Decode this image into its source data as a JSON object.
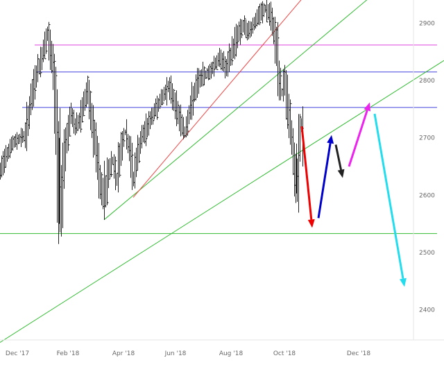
{
  "chart_data": {
    "type": "ohlc",
    "title": "",
    "xlabel": "",
    "ylabel": "",
    "ylim": [
      2330,
      2945
    ],
    "x_ticks": [
      "Dec '17",
      "Feb '18",
      "Apr '18",
      "Jun '18",
      "Aug '18",
      "Oct '18",
      "Dec '18"
    ],
    "y_ticks": [
      2400,
      2500,
      2600,
      2700,
      2800,
      2900
    ],
    "grid": false,
    "legend": "none",
    "price_path": [
      {
        "t": 0,
        "v": 2640
      },
      {
        "t": 8,
        "v": 2670
      },
      {
        "t": 18,
        "v": 2690
      },
      {
        "t": 28,
        "v": 2700
      },
      {
        "t": 36,
        "v": 2705
      },
      {
        "t": 44,
        "v": 2760
      },
      {
        "t": 52,
        "v": 2810
      },
      {
        "t": 60,
        "v": 2840
      },
      {
        "t": 64,
        "v": 2862
      },
      {
        "t": 68,
        "v": 2880
      },
      {
        "t": 72,
        "v": 2850
      },
      {
        "t": 76,
        "v": 2820
      },
      {
        "t": 80,
        "v": 2740
      },
      {
        "t": 84,
        "v": 2620
      },
      {
        "t": 87,
        "v": 2560
      },
      {
        "t": 91,
        "v": 2660
      },
      {
        "t": 96,
        "v": 2700
      },
      {
        "t": 102,
        "v": 2740
      },
      {
        "t": 108,
        "v": 2720
      },
      {
        "t": 114,
        "v": 2730
      },
      {
        "t": 120,
        "v": 2760
      },
      {
        "t": 126,
        "v": 2780
      },
      {
        "t": 132,
        "v": 2730
      },
      {
        "t": 138,
        "v": 2680
      },
      {
        "t": 144,
        "v": 2620
      },
      {
        "t": 150,
        "v": 2590
      },
      {
        "t": 156,
        "v": 2640
      },
      {
        "t": 162,
        "v": 2660
      },
      {
        "t": 168,
        "v": 2630
      },
      {
        "t": 174,
        "v": 2680
      },
      {
        "t": 180,
        "v": 2710
      },
      {
        "t": 186,
        "v": 2680
      },
      {
        "t": 192,
        "v": 2630
      },
      {
        "t": 198,
        "v": 2670
      },
      {
        "t": 204,
        "v": 2700
      },
      {
        "t": 212,
        "v": 2720
      },
      {
        "t": 220,
        "v": 2740
      },
      {
        "t": 228,
        "v": 2760
      },
      {
        "t": 236,
        "v": 2775
      },
      {
        "t": 242,
        "v": 2790
      },
      {
        "t": 248,
        "v": 2775
      },
      {
        "t": 254,
        "v": 2750
      },
      {
        "t": 260,
        "v": 2730
      },
      {
        "t": 266,
        "v": 2710
      },
      {
        "t": 272,
        "v": 2740
      },
      {
        "t": 278,
        "v": 2770
      },
      {
        "t": 286,
        "v": 2800
      },
      {
        "t": 294,
        "v": 2810
      },
      {
        "t": 302,
        "v": 2815
      },
      {
        "t": 310,
        "v": 2830
      },
      {
        "t": 318,
        "v": 2840
      },
      {
        "t": 326,
        "v": 2820
      },
      {
        "t": 334,
        "v": 2850
      },
      {
        "t": 342,
        "v": 2880
      },
      {
        "t": 350,
        "v": 2895
      },
      {
        "t": 358,
        "v": 2885
      },
      {
        "t": 366,
        "v": 2900
      },
      {
        "t": 374,
        "v": 2915
      },
      {
        "t": 382,
        "v": 2925
      },
      {
        "t": 388,
        "v": 2915
      },
      {
        "t": 394,
        "v": 2890
      },
      {
        "t": 398,
        "v": 2860
      },
      {
        "t": 402,
        "v": 2800
      },
      {
        "t": 406,
        "v": 2780
      },
      {
        "t": 410,
        "v": 2800
      },
      {
        "t": 414,
        "v": 2760
      },
      {
        "t": 418,
        "v": 2720
      },
      {
        "t": 422,
        "v": 2680
      },
      {
        "t": 425,
        "v": 2640
      },
      {
        "t": 428,
        "v": 2620
      },
      {
        "t": 431,
        "v": 2690
      },
      {
        "t": 434,
        "v": 2720
      },
      {
        "t": 437,
        "v": 2700
      }
    ],
    "horizontal_lines": [
      {
        "value": 2862,
        "color": "#dd44dd"
      },
      {
        "value": 2815,
        "color": "#4444dd"
      },
      {
        "value": 2753,
        "color": "#4444dd"
      },
      {
        "value": 2533,
        "color": "#33bb33"
      }
    ],
    "trend_lines": [
      {
        "color": "#33bb33",
        "from": {
          "t": 0,
          "v": 2343
        },
        "to": {
          "t": 640,
          "v": 2835
        }
      },
      {
        "color": "#33bb33",
        "from": {
          "t": 150,
          "v": 2557
        },
        "to": {
          "t": 533,
          "v": 2945
        }
      },
      {
        "color": "#ee4444",
        "from": {
          "t": 192,
          "v": 2596
        },
        "to": {
          "t": 437,
          "v": 2945
        }
      }
    ],
    "projection_arrows": [
      {
        "color": "#ee0000",
        "from": {
          "t": 435,
          "v": 2720
        },
        "to": {
          "t": 450,
          "v": 2543
        }
      },
      {
        "color": "#0000cc",
        "from": {
          "t": 459,
          "v": 2560
        },
        "to": {
          "t": 478,
          "v": 2705
        }
      },
      {
        "color": "#222222",
        "from": {
          "t": 484,
          "v": 2688
        },
        "to": {
          "t": 494,
          "v": 2630
        }
      },
      {
        "color": "#ee22ee",
        "from": {
          "t": 503,
          "v": 2650
        },
        "to": {
          "t": 533,
          "v": 2762
        }
      },
      {
        "color": "#22ddee",
        "from": {
          "t": 540,
          "v": 2742
        },
        "to": {
          "t": 583,
          "v": 2440
        }
      }
    ]
  }
}
